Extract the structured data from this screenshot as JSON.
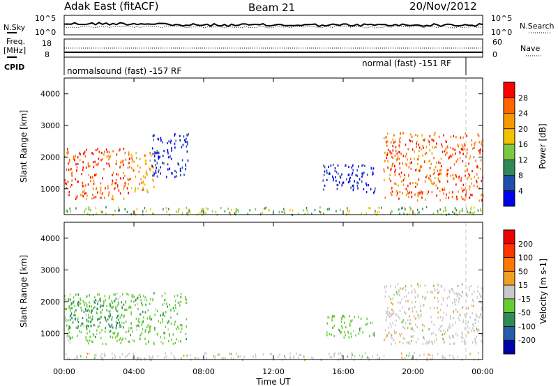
{
  "chart_data": {
    "type": "heatmap",
    "header": {
      "site": "Adak East (fitACF)",
      "beam": "Beam 21",
      "date": "20/Nov/2012"
    },
    "summary_panels": {
      "nsky_label": "N.Sky",
      "nsky_ticks": [
        "10^5",
        "10^0"
      ],
      "nsearch_label": "N.Search",
      "nsearch_ticks": [
        "10^5",
        "10^0"
      ],
      "freq_label_1": "Freq.",
      "freq_label_2": "[MHz]",
      "freq_ticks": [
        "18",
        "8"
      ],
      "nave_label": "Nave",
      "nave_ticks": [
        "60",
        "0"
      ],
      "cpid_label": "CPID",
      "cpid_left": "normalsound (fast) -157 RF",
      "cpid_right": "normal (fast) -151 RF"
    },
    "x_axis": {
      "label": "Time UT",
      "ticks": [
        "00:00",
        "04:00",
        "08:00",
        "12:00",
        "16:00",
        "20:00",
        "00:00"
      ],
      "range_hours": [
        0,
        24
      ]
    },
    "y_axis": {
      "label": "Slant Range [km]",
      "ticks": [
        1000,
        2000,
        3000,
        4000
      ],
      "range_km": [
        180,
        4500
      ]
    },
    "power": {
      "colorbar_label": "Power [dB]",
      "colorbar_ticks": [
        "28",
        "24",
        "20",
        "16",
        "12",
        "8",
        "4"
      ],
      "colors": [
        "#0000ee",
        "#1f4fa8",
        "#2e8b57",
        "#7ac943",
        "#f2c200",
        "#f29a00",
        "#ff6600",
        "#ff0000"
      ],
      "regions": [
        {
          "t": [
            0.0,
            3.8
          ],
          "r": [
            700,
            2300
          ],
          "level": 0.85
        },
        {
          "t": [
            3.8,
            5.2
          ],
          "r": [
            900,
            2200
          ],
          "level": 0.65
        },
        {
          "t": [
            5.0,
            7.1
          ],
          "r": [
            1400,
            2800
          ],
          "level": 0.1
        },
        {
          "t": [
            18.3,
            24.0
          ],
          "r": [
            650,
            2800
          ],
          "level": 0.8
        },
        {
          "t": [
            14.8,
            17.8
          ],
          "r": [
            900,
            1800
          ],
          "level": 0.05
        },
        {
          "t": [
            0.0,
            24.0
          ],
          "r": [
            200,
            450
          ],
          "level": 0.45
        }
      ]
    },
    "velocity": {
      "colorbar_label": "Velocity [m s-1]",
      "colorbar_ticks": [
        "200",
        "100",
        "50",
        "15",
        "-15",
        "-50",
        "-100",
        "-200"
      ],
      "colors": [
        "#0000aa",
        "#225fa8",
        "#2e8b57",
        "#66cc33",
        "#c8c8c8",
        "#f2a020",
        "#ff7700",
        "#ff3300",
        "#ee0000"
      ],
      "regions": [
        {
          "t": [
            0.0,
            7.0
          ],
          "r": [
            700,
            2300
          ],
          "vel": "-15"
        },
        {
          "t": [
            0.2,
            3.5
          ],
          "r": [
            1200,
            2100
          ],
          "vel": "-50"
        },
        {
          "t": [
            18.3,
            24.0
          ],
          "r": [
            700,
            2600
          ],
          "vel": "15"
        },
        {
          "t": [
            15.0,
            17.8
          ],
          "r": [
            900,
            1600
          ],
          "vel": "-15"
        },
        {
          "t": [
            0.0,
            24.0
          ],
          "r": [
            200,
            420
          ],
          "vel": "15"
        }
      ]
    }
  }
}
